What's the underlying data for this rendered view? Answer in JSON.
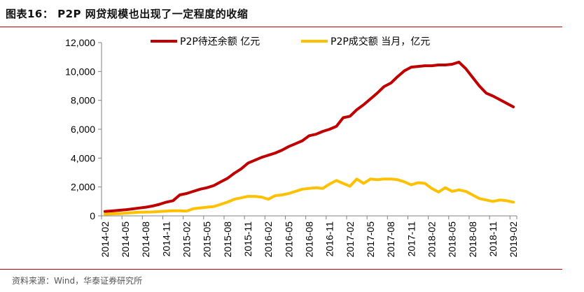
{
  "figure": {
    "title": "图表16：  P2P 网贷规模也出现了一定程度的收缩",
    "source": "资料来源：Wind，华泰证券研究所"
  },
  "chart_data": {
    "type": "line",
    "x": [
      "2014-02",
      "2014-03",
      "2014-04",
      "2014-05",
      "2014-06",
      "2014-07",
      "2014-08",
      "2014-09",
      "2014-10",
      "2014-11",
      "2014-12",
      "2015-01",
      "2015-02",
      "2015-03",
      "2015-04",
      "2015-05",
      "2015-06",
      "2015-07",
      "2015-08",
      "2015-09",
      "2015-10",
      "2015-11",
      "2015-12",
      "2016-01",
      "2016-02",
      "2016-03",
      "2016-04",
      "2016-05",
      "2016-06",
      "2016-07",
      "2016-08",
      "2016-09",
      "2016-10",
      "2016-11",
      "2016-12",
      "2017-01",
      "2017-02",
      "2017-03",
      "2017-04",
      "2017-05",
      "2017-06",
      "2017-07",
      "2017-08",
      "2017-09",
      "2017-10",
      "2017-11",
      "2017-12",
      "2018-01",
      "2018-02",
      "2018-03",
      "2018-04",
      "2018-05",
      "2018-06",
      "2018-07",
      "2018-08",
      "2018-09",
      "2018-10",
      "2018-11",
      "2018-12",
      "2019-01",
      "2019-02"
    ],
    "xticks": [
      "2014-02",
      "2014-05",
      "2014-08",
      "2014-11",
      "2015-02",
      "2015-05",
      "2015-08",
      "2015-11",
      "2016-02",
      "2016-05",
      "2016-08",
      "2016-11",
      "2017-02",
      "2017-05",
      "2017-08",
      "2017-11",
      "2018-02",
      "2018-05",
      "2018-08",
      "2018-11",
      "2019-02"
    ],
    "yticks": [
      "0",
      "2,000",
      "4,000",
      "6,000",
      "8,000",
      "10,000",
      "12,000"
    ],
    "ylim": [
      0,
      12000
    ],
    "series": [
      {
        "name": "P2P待还余额 亿元",
        "color": "#c00000",
        "values": [
          300,
          340,
          380,
          420,
          480,
          540,
          600,
          680,
          800,
          950,
          1050,
          1450,
          1550,
          1700,
          1850,
          1950,
          2100,
          2350,
          2600,
          2950,
          3250,
          3650,
          3850,
          4050,
          4200,
          4350,
          4550,
          4800,
          5000,
          5200,
          5550,
          5650,
          5850,
          6000,
          6200,
          6800,
          6900,
          7350,
          7700,
          8100,
          8500,
          8950,
          9200,
          9650,
          10050,
          10300,
          10350,
          10400,
          10400,
          10450,
          10450,
          10500,
          10650,
          10200,
          9600,
          9000,
          8500,
          8300,
          8050,
          7800,
          7550
        ]
      },
      {
        "name": "P2P成交额 当月，亿元",
        "color": "#ffc000",
        "values": [
          120,
          140,
          160,
          190,
          220,
          250,
          260,
          270,
          300,
          330,
          360,
          350,
          330,
          500,
          550,
          600,
          650,
          800,
          950,
          1150,
          1250,
          1350,
          1350,
          1300,
          1150,
          1400,
          1450,
          1550,
          1700,
          1850,
          1900,
          1950,
          1900,
          2200,
          2450,
          2250,
          2050,
          2550,
          2250,
          2550,
          2500,
          2550,
          2550,
          2500,
          2350,
          2150,
          2300,
          2250,
          1900,
          1650,
          1950,
          1700,
          1800,
          1700,
          1450,
          1200,
          1100,
          1000,
          1100,
          1050,
          950
        ]
      }
    ],
    "legend": "top"
  }
}
